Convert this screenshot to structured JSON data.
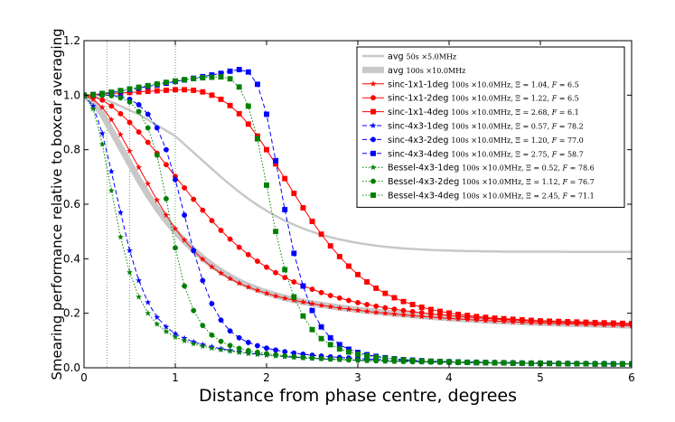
{
  "chart_data": {
    "type": "line",
    "title": "",
    "xlabel": "Distance from phase centre, degrees",
    "ylabel": "Smearing performance relative to boxcar averaging",
    "xlim": [
      0,
      6
    ],
    "ylim": [
      0,
      1.2
    ],
    "xticks": [
      "0",
      "1",
      "2",
      "3",
      "4",
      "5",
      "6"
    ],
    "yticks": [
      "0.0",
      "0.2",
      "0.4",
      "0.6",
      "0.8",
      "1.0",
      "1.2"
    ],
    "vlines_x": [
      0.25,
      0.5,
      1.0
    ],
    "x": [
      0,
      0.1,
      0.2,
      0.3,
      0.4,
      0.5,
      0.6,
      0.7,
      0.8,
      0.9,
      1.0,
      1.1,
      1.2,
      1.3,
      1.4,
      1.5,
      1.6,
      1.7,
      1.8,
      1.9,
      2.0,
      2.1,
      2.2,
      2.3,
      2.4,
      2.5,
      2.6,
      2.7,
      2.8,
      2.9,
      3.0,
      3.1,
      3.2,
      3.3,
      3.4,
      3.5,
      3.6,
      3.7,
      3.8,
      3.9,
      4.0,
      4.1,
      4.2,
      4.3,
      4.4,
      4.5,
      4.6,
      4.7,
      4.8,
      4.9,
      5.0,
      5.1,
      5.2,
      5.3,
      5.4,
      5.5,
      5.6,
      5.7,
      5.8,
      5.9,
      6.0
    ],
    "series": [
      {
        "name": "avg",
        "spec": "50s ×5.0MHz",
        "color": "#c8c8c8",
        "marker": "none",
        "dash": "solid",
        "width": "thin",
        "values": [
          1.0,
          0.995,
          0.988,
          0.975,
          0.96,
          0.945,
          0.93,
          0.91,
          0.89,
          0.87,
          0.85,
          0.82,
          0.79,
          0.76,
          0.73,
          0.7,
          0.672,
          0.645,
          0.62,
          0.597,
          0.576,
          0.557,
          0.54,
          0.525,
          0.511,
          0.499,
          0.488,
          0.479,
          0.471,
          0.464,
          0.458,
          0.453,
          0.448,
          0.444,
          0.441,
          0.438,
          0.436,
          0.434,
          0.432,
          0.431,
          0.43,
          0.429,
          0.428,
          0.428,
          0.427,
          0.427,
          0.426,
          0.426,
          0.426,
          0.426,
          0.426,
          0.426,
          0.426,
          0.425,
          0.425,
          0.425,
          0.425,
          0.425,
          0.425,
          0.425,
          0.425
        ]
      },
      {
        "name": "avg",
        "spec": "100s ×10.0MHz",
        "color": "#c8c8c8",
        "marker": "none",
        "dash": "solid",
        "width": "thick",
        "values": [
          1.0,
          0.975,
          0.93,
          0.87,
          0.81,
          0.75,
          0.69,
          0.635,
          0.585,
          0.54,
          0.5,
          0.465,
          0.432,
          0.403,
          0.377,
          0.354,
          0.334,
          0.316,
          0.301,
          0.288,
          0.276,
          0.266,
          0.257,
          0.249,
          0.242,
          0.236,
          0.231,
          0.226,
          0.221,
          0.217,
          0.213,
          0.209,
          0.206,
          0.202,
          0.199,
          0.196,
          0.193,
          0.19,
          0.187,
          0.185,
          0.182,
          0.18,
          0.178,
          0.176,
          0.174,
          0.172,
          0.171,
          0.169,
          0.168,
          0.166,
          0.165,
          0.164,
          0.163,
          0.162,
          0.161,
          0.16,
          0.159,
          0.158,
          0.157,
          0.156,
          0.155
        ]
      },
      {
        "name": "sinc-1x1-1deg",
        "spec": "100s ×10.0MHz",
        "xi": "1.04",
        "F": "6.5",
        "color": "#ff0000",
        "marker": "star",
        "dash": "solid",
        "width": "normal",
        "values": [
          1.0,
          0.985,
          0.955,
          0.91,
          0.855,
          0.795,
          0.735,
          0.675,
          0.615,
          0.56,
          0.51,
          0.468,
          0.43,
          0.398,
          0.37,
          0.347,
          0.327,
          0.31,
          0.296,
          0.284,
          0.273,
          0.263,
          0.255,
          0.248,
          0.241,
          0.235,
          0.229,
          0.224,
          0.219,
          0.215,
          0.211,
          0.207,
          0.203,
          0.2,
          0.197,
          0.194,
          0.191,
          0.188,
          0.186,
          0.183,
          0.181,
          0.179,
          0.177,
          0.175,
          0.173,
          0.171,
          0.17,
          0.168,
          0.167,
          0.165,
          0.164,
          0.163,
          0.162,
          0.161,
          0.16,
          0.159,
          0.158,
          0.157,
          0.156,
          0.155,
          0.154
        ]
      },
      {
        "name": "sinc-1x1-2deg",
        "spec": "100s ×10.0MHz",
        "xi": "1.22",
        "F": "6.5",
        "color": "#ff0000",
        "marker": "circle",
        "dash": "solid",
        "width": "normal",
        "values": [
          1.0,
          0.995,
          0.982,
          0.96,
          0.932,
          0.9,
          0.865,
          0.827,
          0.787,
          0.745,
          0.702,
          0.66,
          0.618,
          0.578,
          0.54,
          0.504,
          0.472,
          0.442,
          0.415,
          0.391,
          0.369,
          0.349,
          0.331,
          0.315,
          0.301,
          0.288,
          0.276,
          0.265,
          0.256,
          0.247,
          0.239,
          0.232,
          0.226,
          0.22,
          0.215,
          0.21,
          0.206,
          0.202,
          0.198,
          0.195,
          0.192,
          0.189,
          0.186,
          0.184,
          0.181,
          0.179,
          0.177,
          0.175,
          0.174,
          0.172,
          0.17,
          0.169,
          0.168,
          0.166,
          0.165,
          0.164,
          0.163,
          0.162,
          0.161,
          0.16,
          0.159
        ]
      },
      {
        "name": "sinc-1x1-4deg",
        "spec": "100s ×10.0MHz",
        "xi": "2.68",
        "F": "6.1",
        "color": "#ff0000",
        "marker": "square",
        "dash": "solid",
        "width": "normal",
        "values": [
          1.0,
          1.002,
          1.004,
          1.006,
          1.008,
          1.01,
          1.012,
          1.014,
          1.016,
          1.018,
          1.02,
          1.02,
          1.018,
          1.012,
          1.0,
          0.985,
          0.962,
          0.932,
          0.894,
          0.85,
          0.8,
          0.748,
          0.694,
          0.64,
          0.587,
          0.537,
          0.49,
          0.447,
          0.408,
          0.373,
          0.342,
          0.315,
          0.292,
          0.273,
          0.257,
          0.243,
          0.232,
          0.222,
          0.214,
          0.207,
          0.201,
          0.196,
          0.192,
          0.188,
          0.185,
          0.182,
          0.18,
          0.178,
          0.176,
          0.174,
          0.172,
          0.171,
          0.17,
          0.169,
          0.168,
          0.167,
          0.166,
          0.165,
          0.164,
          0.163,
          0.162
        ]
      },
      {
        "name": "sinc-4x3-1deg",
        "spec": "100s ×10.0MHz",
        "xi": "0.57",
        "F": "78.2",
        "color": "#0000ff",
        "marker": "star",
        "dash": "dashed",
        "width": "normal",
        "values": [
          1.0,
          0.96,
          0.86,
          0.72,
          0.57,
          0.43,
          0.32,
          0.24,
          0.185,
          0.15,
          0.125,
          0.108,
          0.095,
          0.085,
          0.077,
          0.07,
          0.064,
          0.059,
          0.054,
          0.05,
          0.047,
          0.044,
          0.041,
          0.039,
          0.037,
          0.035,
          0.033,
          0.031,
          0.03,
          0.029,
          0.027,
          0.026,
          0.025,
          0.024,
          0.023,
          0.023,
          0.022,
          0.021,
          0.021,
          0.02,
          0.02,
          0.019,
          0.019,
          0.018,
          0.018,
          0.018,
          0.017,
          0.017,
          0.017,
          0.016,
          0.016,
          0.016,
          0.016,
          0.015,
          0.015,
          0.015,
          0.015,
          0.015,
          0.014,
          0.014,
          0.014
        ]
      },
      {
        "name": "sinc-4x3-2deg",
        "spec": "100s ×10.0MHz",
        "xi": "1.20",
        "F": "77.0",
        "color": "#0000ff",
        "marker": "circle",
        "dash": "dashed",
        "width": "normal",
        "values": [
          1.0,
          1.0,
          1.0,
          1.0,
          0.995,
          0.985,
          0.965,
          0.93,
          0.88,
          0.8,
          0.69,
          0.56,
          0.43,
          0.32,
          0.235,
          0.175,
          0.135,
          0.11,
          0.093,
          0.081,
          0.072,
          0.065,
          0.059,
          0.054,
          0.05,
          0.046,
          0.043,
          0.04,
          0.038,
          0.036,
          0.034,
          0.032,
          0.031,
          0.029,
          0.028,
          0.027,
          0.026,
          0.025,
          0.024,
          0.023,
          0.023,
          0.022,
          0.021,
          0.021,
          0.02,
          0.02,
          0.019,
          0.019,
          0.018,
          0.018,
          0.018,
          0.017,
          0.017,
          0.017,
          0.016,
          0.016,
          0.016,
          0.016,
          0.015,
          0.015,
          0.015
        ]
      },
      {
        "name": "sinc-4x3-4deg",
        "spec": "100s ×10.0MHz",
        "xi": "2.75",
        "F": "58.7",
        "color": "#0000ff",
        "marker": "square",
        "dash": "dashed",
        "width": "normal",
        "values": [
          1.0,
          1.002,
          1.006,
          1.01,
          1.015,
          1.02,
          1.026,
          1.032,
          1.038,
          1.044,
          1.05,
          1.056,
          1.062,
          1.068,
          1.074,
          1.08,
          1.088,
          1.094,
          1.085,
          1.04,
          0.93,
          0.76,
          0.58,
          0.42,
          0.3,
          0.21,
          0.15,
          0.11,
          0.085,
          0.068,
          0.056,
          0.048,
          0.042,
          0.037,
          0.033,
          0.03,
          0.028,
          0.026,
          0.024,
          0.023,
          0.022,
          0.021,
          0.02,
          0.019,
          0.019,
          0.018,
          0.018,
          0.017,
          0.017,
          0.016,
          0.016,
          0.016,
          0.015,
          0.015,
          0.015,
          0.015,
          0.014,
          0.014,
          0.014,
          0.014,
          0.014
        ]
      },
      {
        "name": "Bessel-4x3-1deg",
        "spec": "100s ×10.0MHz,",
        "xi": "0.52",
        "F": "78.6",
        "color": "#008000",
        "marker": "star",
        "dash": "dotted",
        "width": "normal",
        "values": [
          1.0,
          0.95,
          0.82,
          0.65,
          0.48,
          0.35,
          0.26,
          0.2,
          0.16,
          0.133,
          0.113,
          0.099,
          0.088,
          0.079,
          0.072,
          0.066,
          0.061,
          0.056,
          0.052,
          0.049,
          0.046,
          0.043,
          0.041,
          0.038,
          0.036,
          0.034,
          0.033,
          0.031,
          0.03,
          0.029,
          0.028,
          0.027,
          0.026,
          0.025,
          0.024,
          0.023,
          0.023,
          0.022,
          0.021,
          0.021,
          0.02,
          0.02,
          0.019,
          0.019,
          0.019,
          0.018,
          0.018,
          0.018,
          0.017,
          0.017,
          0.017,
          0.016,
          0.016,
          0.016,
          0.016,
          0.015,
          0.015,
          0.015,
          0.015,
          0.015,
          0.014
        ]
      },
      {
        "name": "Bessel-4x3-2deg",
        "spec": "100s ×10.0MHz,",
        "xi": "1.12",
        "F": "76.7",
        "color": "#008000",
        "marker": "circle",
        "dash": "dotted",
        "width": "normal",
        "values": [
          1.0,
          1.0,
          1.0,
          0.998,
          0.99,
          0.975,
          0.94,
          0.88,
          0.78,
          0.62,
          0.44,
          0.3,
          0.21,
          0.155,
          0.12,
          0.097,
          0.082,
          0.071,
          0.063,
          0.057,
          0.052,
          0.048,
          0.044,
          0.041,
          0.038,
          0.036,
          0.034,
          0.032,
          0.031,
          0.029,
          0.028,
          0.027,
          0.026,
          0.025,
          0.024,
          0.023,
          0.022,
          0.022,
          0.021,
          0.02,
          0.02,
          0.019,
          0.019,
          0.019,
          0.018,
          0.018,
          0.018,
          0.017,
          0.017,
          0.017,
          0.016,
          0.016,
          0.016,
          0.016,
          0.015,
          0.015,
          0.015,
          0.015,
          0.015,
          0.014,
          0.014
        ]
      },
      {
        "name": "Bessel-4x3-4deg",
        "spec": "100s ×10.0MHz,",
        "xi": "2.45",
        "F": "71.1",
        "color": "#008000",
        "marker": "square",
        "dash": "dotted",
        "width": "normal",
        "values": [
          1.0,
          1.002,
          1.006,
          1.011,
          1.017,
          1.023,
          1.029,
          1.035,
          1.041,
          1.047,
          1.052,
          1.057,
          1.061,
          1.064,
          1.066,
          1.067,
          1.06,
          1.03,
          0.96,
          0.84,
          0.67,
          0.5,
          0.36,
          0.26,
          0.19,
          0.14,
          0.107,
          0.085,
          0.069,
          0.058,
          0.05,
          0.044,
          0.039,
          0.035,
          0.032,
          0.029,
          0.027,
          0.025,
          0.024,
          0.023,
          0.022,
          0.021,
          0.02,
          0.019,
          0.019,
          0.018,
          0.018,
          0.017,
          0.017,
          0.016,
          0.016,
          0.016,
          0.015,
          0.015,
          0.015,
          0.015,
          0.014,
          0.014,
          0.014,
          0.014,
          0.014
        ]
      }
    ],
    "legend_location": "top-right"
  }
}
